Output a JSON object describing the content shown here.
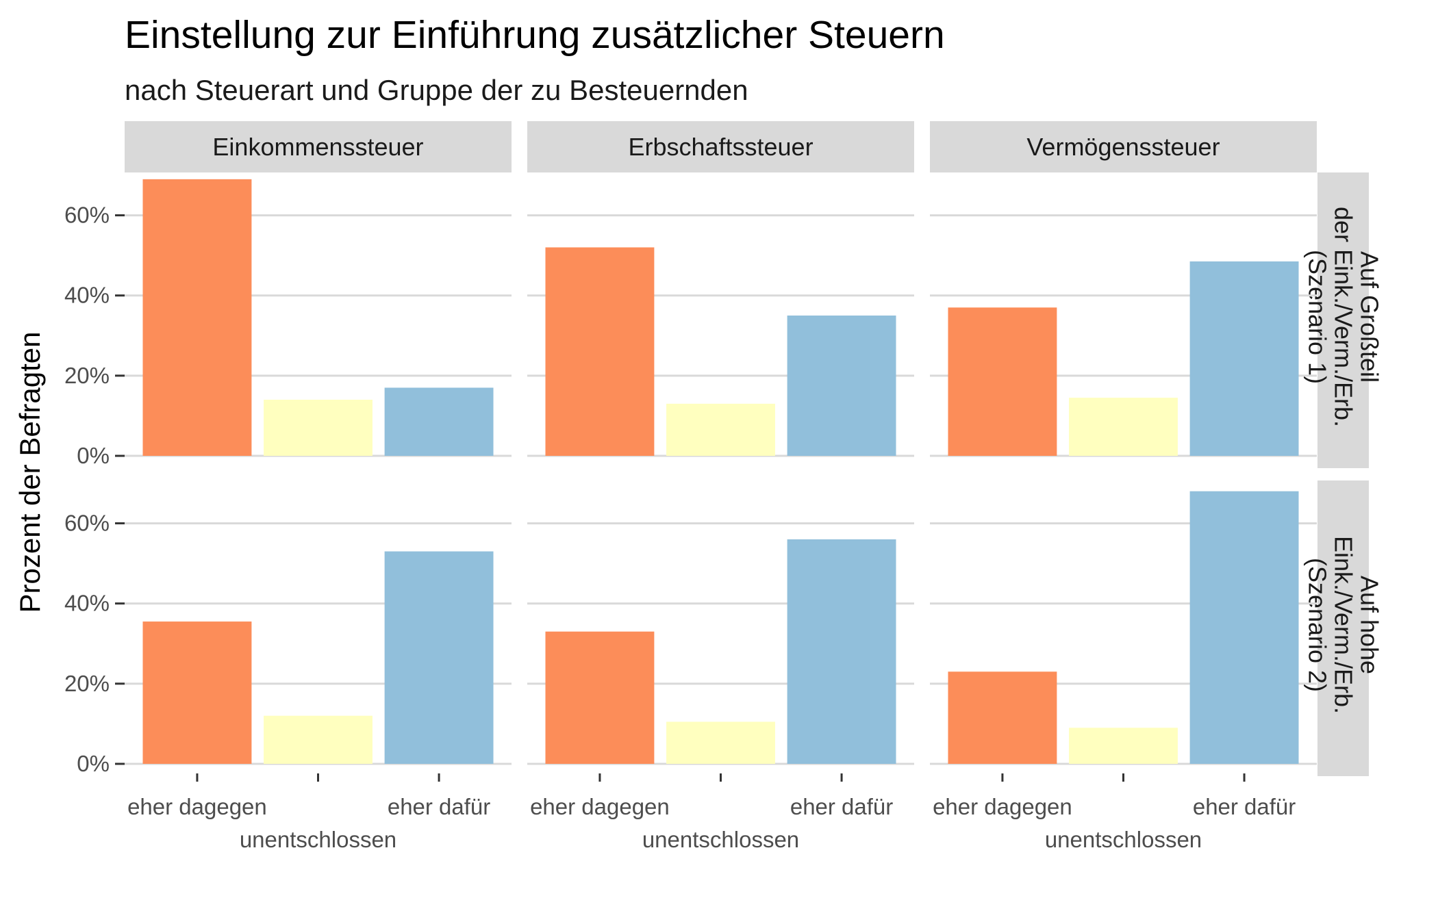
{
  "chart_data": {
    "type": "bar",
    "title": "Einstellung zur Einführung zusätzlicher Steuern",
    "subtitle": "nach Steuerart und Gruppe der zu Besteuernden",
    "ylabel": "Prozent der Befragten",
    "xlabel": "",
    "ylim": [
      0,
      70
    ],
    "yticks": [
      0,
      20,
      40,
      60
    ],
    "ytick_suffix": "%",
    "grid": true,
    "categories": [
      "eher dagegen",
      "unentschlossen",
      "eher dafür"
    ],
    "colors": [
      "#FC8D59",
      "#FFFFBF",
      "#91BFDB"
    ],
    "columns": [
      "Einkommenssteuer",
      "Erbschaftssteuer",
      "Vermögenssteuer"
    ],
    "rows": [
      {
        "lines": [
          "Auf Großteil",
          "der Eink./Verm./Erb.",
          "(Szenario 1)"
        ]
      },
      {
        "lines": [
          "Auf hohe",
          "Eink./Verm./Erb.",
          "(Szenario 2)"
        ]
      }
    ],
    "panels": [
      [
        {
          "values": [
            69,
            14,
            17
          ]
        },
        {
          "values": [
            52,
            13,
            35
          ]
        },
        {
          "values": [
            37,
            14.5,
            48.5
          ]
        }
      ],
      [
        {
          "values": [
            35.5,
            12,
            53
          ]
        },
        {
          "values": [
            33,
            10.5,
            56
          ]
        },
        {
          "values": [
            23,
            9,
            68
          ]
        }
      ]
    ]
  }
}
